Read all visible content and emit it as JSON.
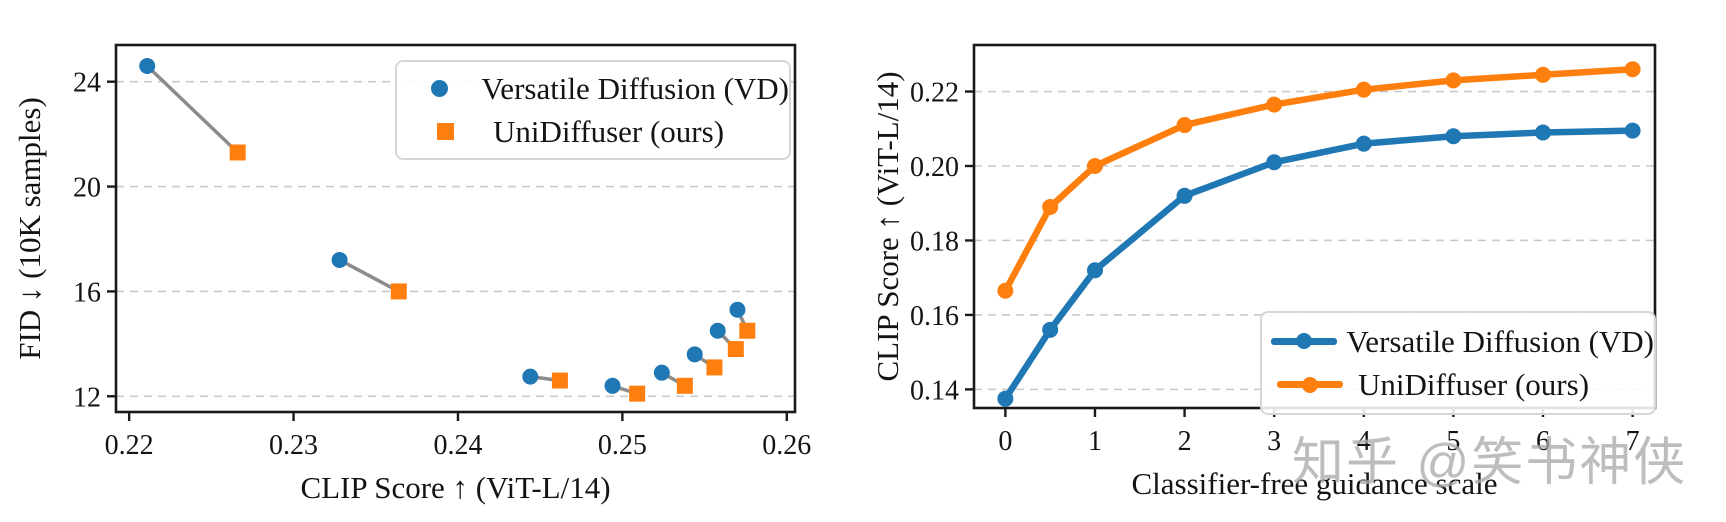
{
  "colors": {
    "vd": "#1f77b4",
    "unidiffuser": "#ff7f0e",
    "connector": "#8c8c8c",
    "grid": "#c9c9c9",
    "spine": "#1a1a1a",
    "watermark": "#ababab"
  },
  "watermark": {
    "text": "知乎 @笑书神侠"
  },
  "chart_data": [
    {
      "id": "fid-vs-clip",
      "type": "scatter",
      "title": "",
      "xlabel": "CLIP Score ↑ (ViT-L/14)",
      "ylabel": "FID ↓ (10K samples)",
      "xlim": [
        0.2192,
        0.2605
      ],
      "ylim": [
        11.4,
        25.4
      ],
      "xticks": [
        0.22,
        0.23,
        0.24,
        0.25,
        0.26
      ],
      "xtick_labels": [
        "0.22",
        "0.23",
        "0.24",
        "0.25",
        "0.26"
      ],
      "yticks": [
        12,
        16,
        20,
        24
      ],
      "ytick_labels": [
        "12",
        "16",
        "20",
        "24"
      ],
      "grid": "y-dashed",
      "legend_position": "upper right",
      "pair_connectors": true,
      "series": [
        {
          "name": "Versatile Diffusion (VD)",
          "marker": "circle",
          "color": "#1f77b4",
          "points": [
            [
              0.2211,
              24.6
            ],
            [
              0.2328,
              17.2
            ],
            [
              0.2444,
              12.75
            ],
            [
              0.2494,
              12.4
            ],
            [
              0.2524,
              12.9
            ],
            [
              0.2544,
              13.6
            ],
            [
              0.2558,
              14.5
            ],
            [
              0.257,
              15.3
            ]
          ]
        },
        {
          "name": "UniDiffuser (ours)",
          "marker": "square",
          "color": "#ff7f0e",
          "points": [
            [
              0.2266,
              21.3
            ],
            [
              0.2364,
              16.0
            ],
            [
              0.2462,
              12.6
            ],
            [
              0.2509,
              12.1
            ],
            [
              0.2538,
              12.4
            ],
            [
              0.2556,
              13.1
            ],
            [
              0.2569,
              13.8
            ],
            [
              0.2576,
              14.5
            ]
          ]
        }
      ]
    },
    {
      "id": "clip-vs-guidance",
      "type": "line",
      "title": "",
      "xlabel": "Classifier-free guidance scale",
      "ylabel": "CLIP Score ↑ (ViT-L/14)",
      "xlim": [
        -0.35,
        7.25
      ],
      "ylim": [
        0.135,
        0.2325
      ],
      "xticks": [
        0,
        1,
        2,
        3,
        4,
        5,
        6,
        7
      ],
      "xtick_labels": [
        "0",
        "1",
        "2",
        "3",
        "4",
        "5",
        "6",
        "7"
      ],
      "yticks": [
        0.14,
        0.16,
        0.18,
        0.2,
        0.22
      ],
      "ytick_labels": [
        "0.14",
        "0.16",
        "0.18",
        "0.20",
        "0.22"
      ],
      "grid": "y-dashed",
      "legend_position": "lower right",
      "x": [
        0,
        0.5,
        1,
        2,
        3,
        4,
        5,
        6,
        7
      ],
      "series": [
        {
          "name": "Versatile Diffusion (VD)",
          "marker": "circle",
          "color": "#1f77b4",
          "values": [
            0.1375,
            0.156,
            0.172,
            0.192,
            0.201,
            0.206,
            0.208,
            0.209,
            0.2095
          ]
        },
        {
          "name": "UniDiffuser (ours)",
          "marker": "circle",
          "color": "#ff7f0e",
          "values": [
            0.1665,
            0.189,
            0.2,
            0.211,
            0.2165,
            0.2205,
            0.223,
            0.2245,
            0.226
          ]
        }
      ]
    }
  ]
}
